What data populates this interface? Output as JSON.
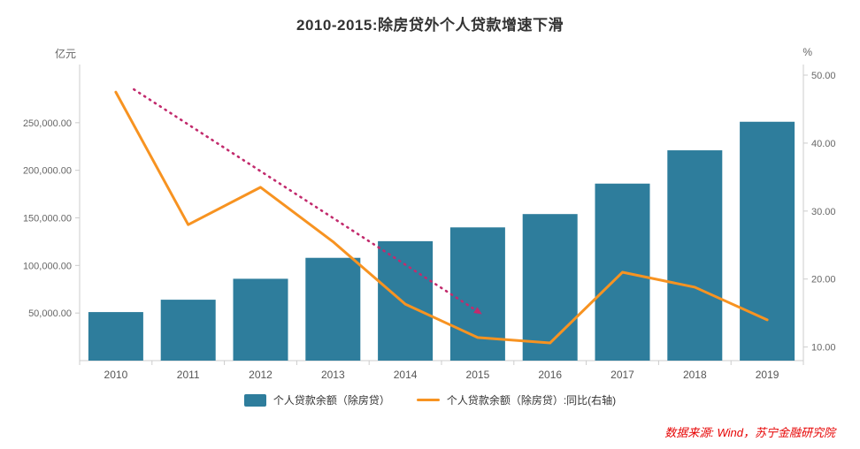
{
  "chart_data": {
    "type": "bar",
    "title": "2010-2015:除房贷外个人贷款增速下滑",
    "left_unit": "亿元",
    "right_unit": "%",
    "categories": [
      "2010",
      "2011",
      "2012",
      "2013",
      "2014",
      "2015",
      "2016",
      "2017",
      "2018",
      "2019"
    ],
    "series": [
      {
        "name": "个人贷款余额（除房贷）",
        "type": "bar",
        "axis": "left",
        "color": "#2e7d9c",
        "values": [
          51000,
          64000,
          86000,
          108000,
          125500,
          140000,
          154000,
          186000,
          221000,
          251000
        ]
      },
      {
        "name": "个人贷款余额（除房贷）:同比(右轴)",
        "type": "line",
        "axis": "right",
        "color": "#f79321",
        "values": [
          47.5,
          28,
          33.5,
          25.5,
          16.3,
          11.4,
          10.6,
          21,
          18.8,
          14
        ]
      }
    ],
    "trend": {
      "color": "#c22b6d",
      "from": {
        "x_index": 0.25,
        "value": 47.9
      },
      "to": {
        "x_index": 5.05,
        "value": 14.9
      }
    },
    "left_axis": {
      "min": 0,
      "max": 300000,
      "ticks": [
        50000,
        100000,
        150000,
        200000,
        250000
      ],
      "tick_labels": [
        "50,000.00",
        "100,000.00",
        "150,000.00",
        "200,000.00",
        "250,000.00"
      ]
    },
    "right_axis": {
      "min": 8,
      "max": 50,
      "ticks": [
        10,
        20,
        30,
        40,
        50
      ],
      "tick_labels": [
        "10.00",
        "20.00",
        "30.00",
        "40.00",
        "50.00"
      ]
    },
    "grid": false,
    "legend_position": "bottom",
    "source": "数据来源: Wind，苏宁金融研究院",
    "source_color": "#e60000"
  }
}
